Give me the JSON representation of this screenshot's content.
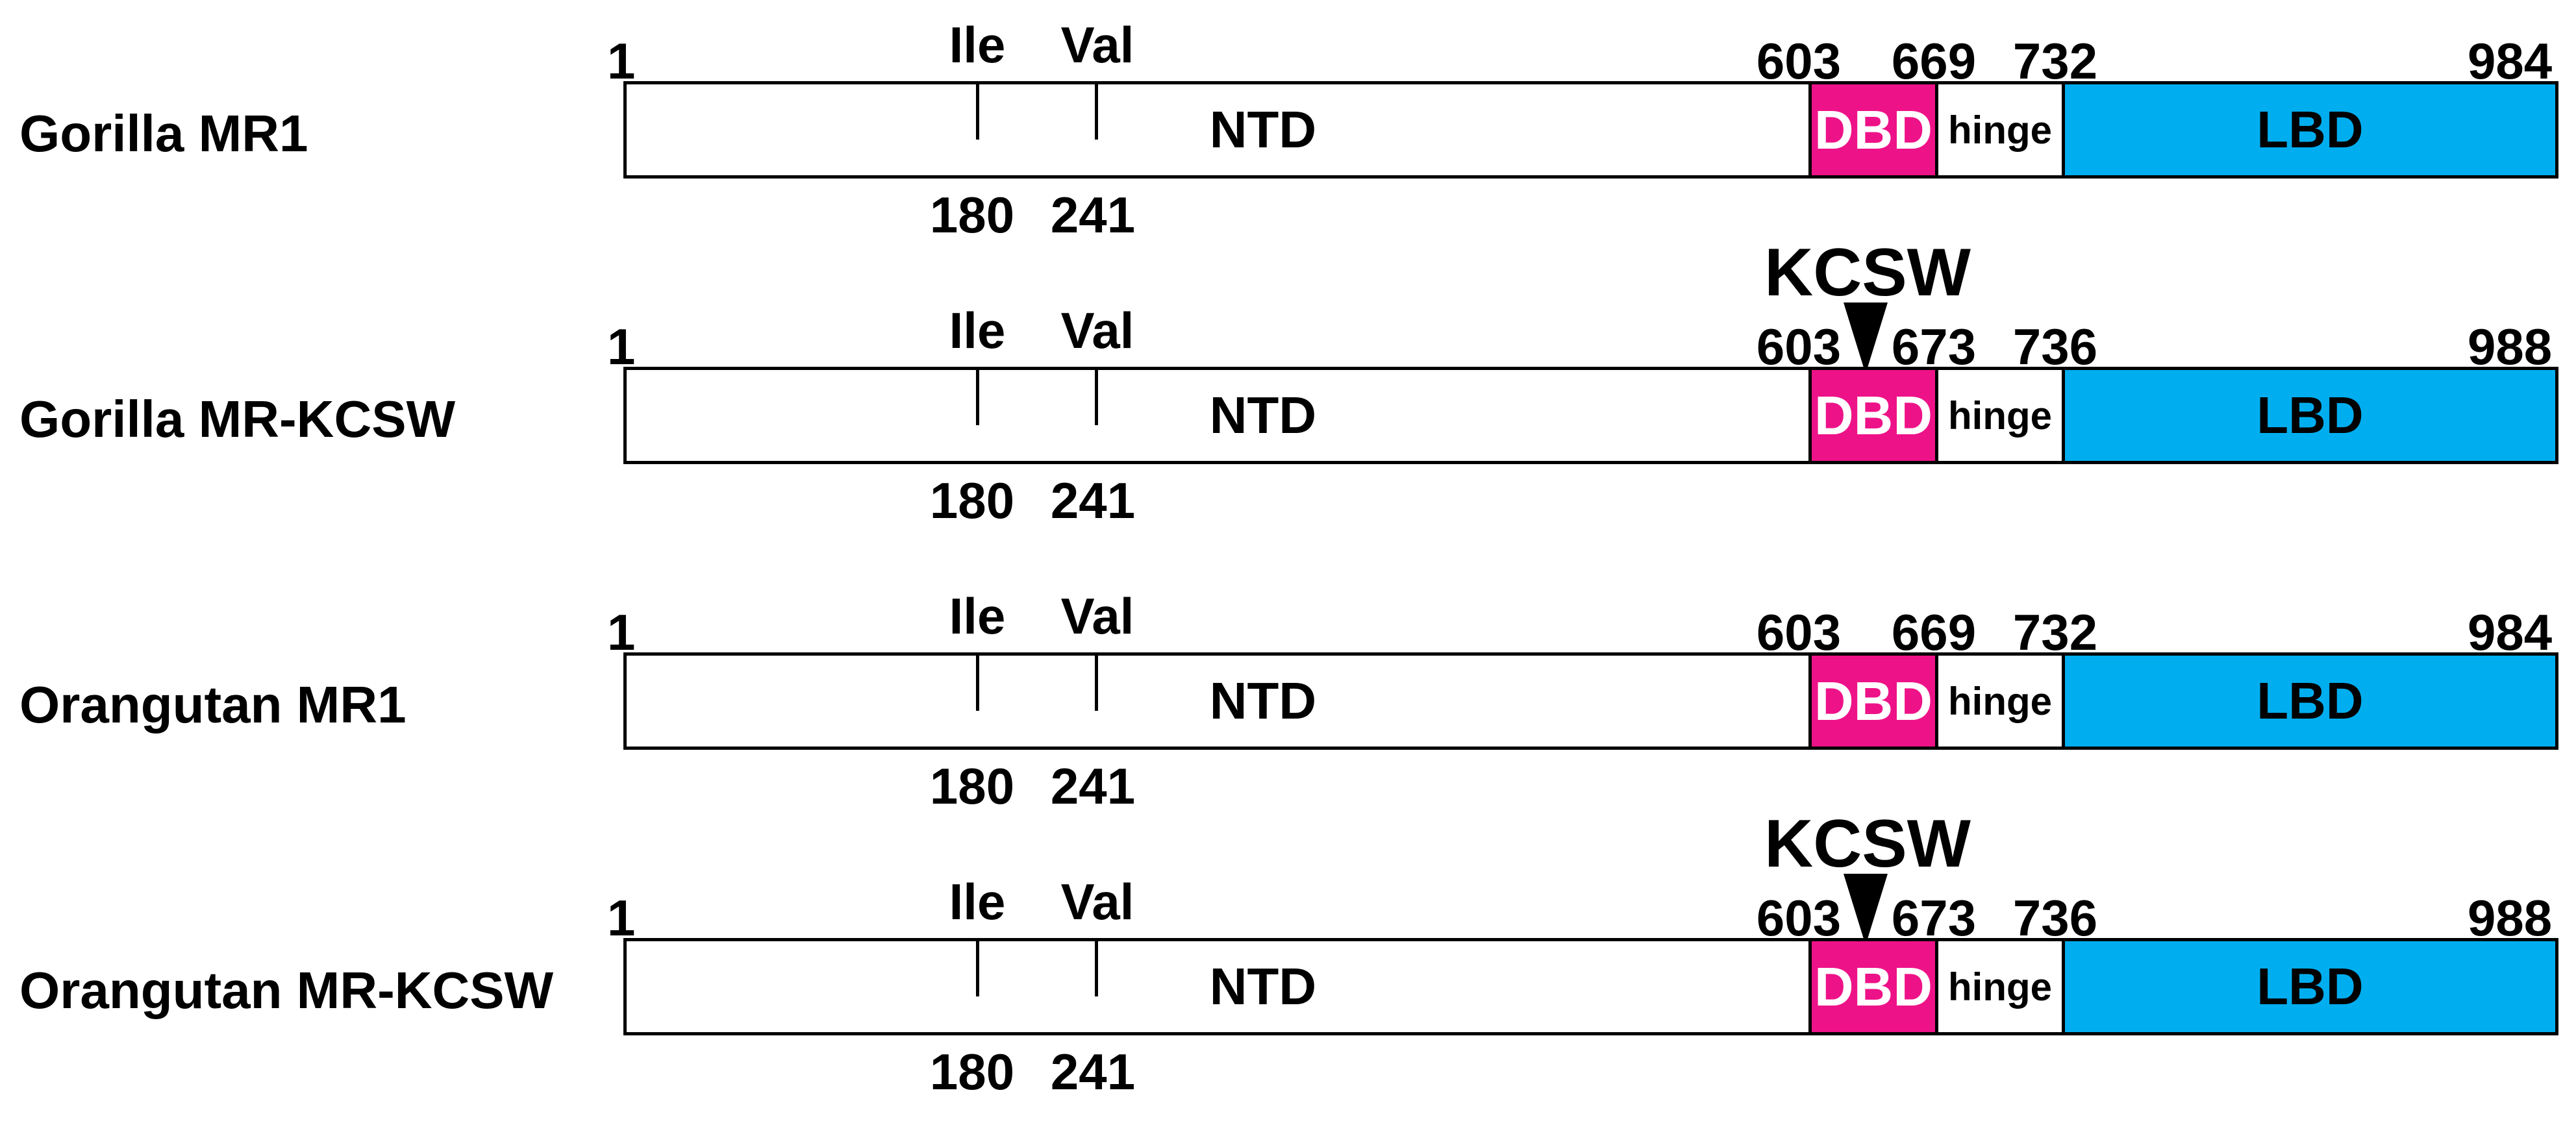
{
  "segment_labels": {
    "ntd": "NTD",
    "dbd": "DBD",
    "hinge": "hinge",
    "lbd": "LBD"
  },
  "residues": {
    "res1": "Ile",
    "res2": "Val",
    "pos1": "180",
    "pos2": "241"
  },
  "insertion_label": "KCSW",
  "colors": {
    "dbd": "#ee1288",
    "lbd": "#00aeef",
    "outline": "#000000"
  },
  "rows": [
    {
      "label": "Gorilla MR1",
      "start": "1",
      "dbd_start": "603",
      "dbd_end": "669",
      "hinge_end": "732",
      "end": "984",
      "has_insert": false
    },
    {
      "label": "Gorilla MR-KCSW",
      "start": "1",
      "dbd_start": "603",
      "dbd_end": "673",
      "hinge_end": "736",
      "end": "988",
      "has_insert": true
    },
    {
      "label": "Orangutan MR1",
      "start": "1",
      "dbd_start": "603",
      "dbd_end": "669",
      "hinge_end": "732",
      "end": "984",
      "has_insert": false
    },
    {
      "label": "Orangutan MR-KCSW",
      "start": "1",
      "dbd_start": "603",
      "dbd_end": "673",
      "hinge_end": "736",
      "end": "988",
      "has_insert": true
    }
  ]
}
